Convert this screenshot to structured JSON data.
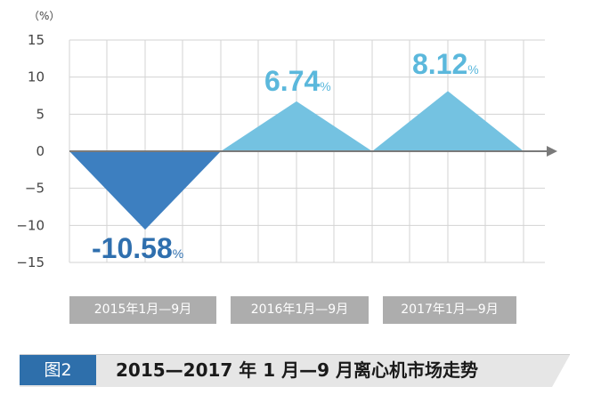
{
  "chart_data": {
    "type": "area",
    "unit_label": "（%）",
    "y_ticks": [
      "15",
      "10",
      "5",
      "0",
      "−10",
      "−15"
    ],
    "y_tick_values": [
      15,
      10,
      5,
      0,
      -10,
      -15
    ],
    "minus_five_label": "−5",
    "ylim": [
      -15,
      15
    ],
    "categories": [
      "2015年1月—9月",
      "2016年1月—9月",
      "2017年1月—9月"
    ],
    "values": [
      -10.58,
      6.74,
      8.12
    ],
    "value_labels": [
      "-10.58",
      "6.74",
      "8.12"
    ],
    "value_suffix": "%",
    "colors": {
      "negative": "#3d7fc0",
      "positive": "#74c2e1",
      "value_neg": "#2f6fae",
      "value_pos": "#5bb8dc"
    },
    "grid": true
  },
  "caption": {
    "tag": "图2",
    "title": "2015—2017 年 1 月—9 月离心机市场走势"
  }
}
